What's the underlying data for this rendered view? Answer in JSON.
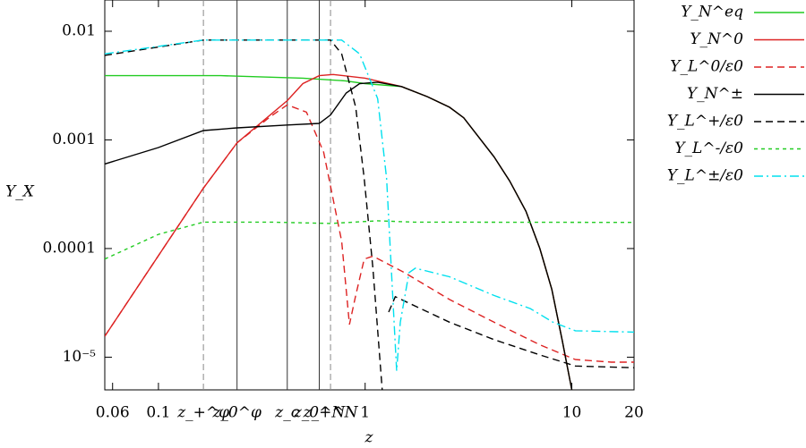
{
  "chart_data": {
    "type": "line",
    "x_label": "z",
    "y_label": "Y_X",
    "xscale": "log",
    "yscale": "log",
    "legend": "right",
    "xlim": [
      0.055,
      20
    ],
    "ylim": [
      5e-06,
      0.0194
    ],
    "xticks": [
      0.06,
      0.1,
      1,
      10,
      20
    ],
    "yticks": [
      0.01,
      0.001,
      0.0001,
      {
        "value": 1e-05,
        "label": "10⁻⁵"
      }
    ],
    "vlines": [
      {
        "value": 0.165,
        "label": "z_+^φ",
        "style": "dashed"
      },
      {
        "value": 0.24,
        "label": "z_0^φ",
        "style": "solid"
      },
      {
        "value": 0.42,
        "label": "z_c",
        "style": "solid"
      },
      {
        "value": 0.6,
        "label": "z_0^N",
        "style": "solid"
      },
      {
        "value": 0.68,
        "label": "z_+^N",
        "style": "dashed"
      }
    ],
    "series": [
      {
        "name": "Y_N^eq",
        "color": "#22cc22",
        "dash": "solid",
        "x": [
          0.055,
          0.2,
          0.5,
          0.8,
          1,
          1.5,
          2,
          2.56,
          3,
          4.2,
          5,
          6,
          7,
          8,
          9,
          10
        ],
        "values": [
          0.0039,
          0.0039,
          0.0037,
          0.0035,
          0.0033,
          0.0031,
          0.0025,
          0.002,
          0.0016,
          0.0007,
          0.00042,
          0.00022,
          0.0001,
          4.2e-05,
          1.4e-05,
          5e-06
        ]
      },
      {
        "name": "Y_N^0",
        "color": "#dd2222",
        "dash": "solid",
        "x": [
          0.055,
          0.165,
          0.24,
          0.42,
          0.5,
          0.6,
          0.7,
          1,
          1.5,
          2,
          2.56,
          3,
          4.2,
          5,
          6,
          7,
          8,
          9,
          10
        ],
        "values": [
          1.56e-05,
          0.00036,
          0.00094,
          0.0023,
          0.0033,
          0.0039,
          0.004,
          0.0037,
          0.0031,
          0.0025,
          0.002,
          0.0016,
          0.0007,
          0.00042,
          0.00022,
          0.0001,
          4.2e-05,
          1.4e-05,
          5e-06
        ]
      },
      {
        "name": "Y_L^0/ε0",
        "color": "#dd2222",
        "dash": "dashed",
        "x": [
          0.055,
          0.165,
          0.24,
          0.35,
          0.42,
          0.52,
          0.63,
          0.77,
          0.84,
          0.9,
          0.99,
          1.09,
          1.55,
          2.56,
          4.2,
          7,
          10.4,
          15.5,
          20
        ],
        "values": [
          1.56e-05,
          0.00036,
          0.00094,
          0.00165,
          0.0021,
          0.0018,
          0.00077,
          0.000117,
          2e-05,
          3.7e-05,
          8e-05,
          8.5e-05,
          6e-05,
          3.4e-05,
          2.1e-05,
          1.3e-05,
          9.5e-06,
          9e-06,
          9e-06
        ]
      },
      {
        "name": "Y_N^±",
        "color": "#000000",
        "dash": "solid",
        "x": [
          0.055,
          0.1,
          0.165,
          0.24,
          0.42,
          0.6,
          0.68,
          0.81,
          0.94,
          1.15,
          1.5,
          2,
          2.56,
          3,
          4.2,
          5,
          6,
          7,
          8,
          9,
          10
        ],
        "values": [
          0.0006,
          0.00085,
          0.00122,
          0.00129,
          0.00137,
          0.00142,
          0.0017,
          0.0027,
          0.0033,
          0.0034,
          0.0031,
          0.0025,
          0.002,
          0.0016,
          0.0007,
          0.00042,
          0.00022,
          0.0001,
          4.2e-05,
          1.4e-05,
          5e-06
        ]
      },
      {
        "name": "Y_L^+/ε0",
        "color": "#000000",
        "dash": "dashed",
        "x": [
          0.055,
          0.165,
          0.68,
          0.77,
          0.9,
          0.99,
          1.09,
          1.21,
          1.25,
          1.3,
          1.4,
          2.56,
          4.2,
          7,
          10.4,
          20
        ],
        "values": [
          0.006,
          0.0083,
          0.0083,
          0.0062,
          0.002,
          0.00044,
          6.6e-05,
          5e-06,
          null,
          2.6e-05,
          3.6e-05,
          2.1e-05,
          1.45e-05,
          1.05e-05,
          8.3e-06,
          8e-06
        ]
      },
      {
        "name": "Y_L^-/ε0",
        "color": "#22cc22",
        "dash": "dotted",
        "x": [
          0.055,
          0.1,
          0.165,
          0.35,
          0.68,
          1.15,
          1.72,
          20
        ],
        "values": [
          8e-05,
          0.000135,
          0.000175,
          0.000175,
          0.00017,
          0.00018,
          0.000175,
          0.000174
        ]
      },
      {
        "name": "Y_L^±/ε0",
        "color": "#00e0ee",
        "dash": "dashdot",
        "x": [
          0.055,
          0.165,
          0.77,
          0.94,
          1.15,
          1.27,
          1.36,
          1.42,
          1.48,
          1.63,
          1.75,
          2.56,
          4.2,
          6.3,
          8.1,
          10.4,
          20
        ],
        "values": [
          0.0062,
          0.0083,
          0.0083,
          0.0062,
          0.0024,
          0.00044,
          3.7e-05,
          7.5e-06,
          2.1e-05,
          6e-05,
          6.6e-05,
          5.5e-05,
          3.7e-05,
          2.8e-05,
          2.1e-05,
          1.75e-05,
          1.7e-05
        ]
      }
    ]
  }
}
